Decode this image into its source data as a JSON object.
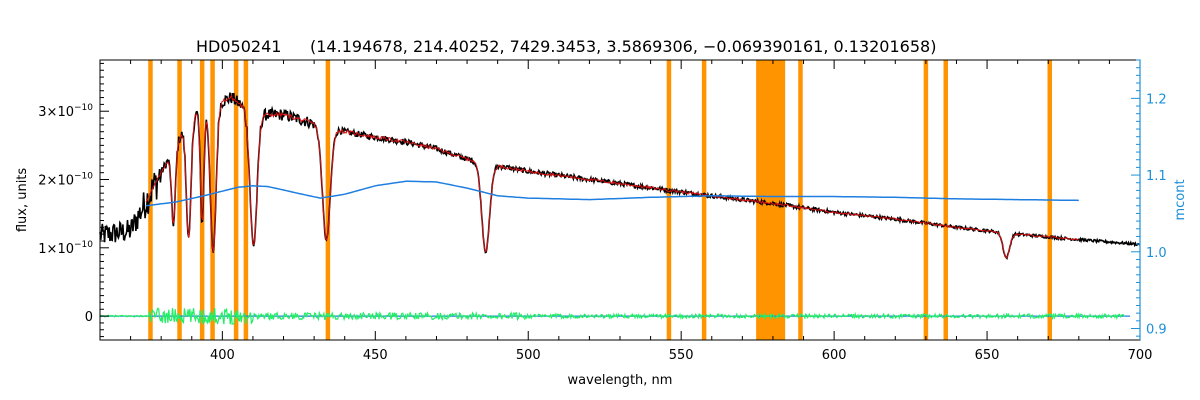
{
  "chart_data": {
    "type": "line",
    "title_parts": [
      "HD050241",
      "(14.194678, 214.40252, 7429.3453, 3.5869306, −0.069390161, 0.13201658)"
    ],
    "xlabel": "wavelength, nm",
    "ylabel_left": "flux, units",
    "ylabel_right": "mcont",
    "xlim": [
      360,
      700
    ],
    "ylim_left": [
      -3.5e-11,
      3.75e-10
    ],
    "ylim_right": [
      0.885,
      1.25
    ],
    "x_ticks": [
      400,
      450,
      500,
      550,
      600,
      650,
      700
    ],
    "x_tick_labels": [
      "400",
      "450",
      "500",
      "550",
      "600",
      "650",
      "700"
    ],
    "y_left_ticks": [
      0,
      1e-10,
      2e-10,
      3e-10
    ],
    "y_left_tick_labels": [
      {
        "base": "0",
        "exp": ""
      },
      {
        "base": "1×10",
        "exp": "−10"
      },
      {
        "base": "2×10",
        "exp": "−10"
      },
      {
        "base": "3×10",
        "exp": "−10"
      }
    ],
    "y_right_ticks": [
      0.9,
      1.0,
      1.1,
      1.2
    ],
    "y_right_tick_labels": [
      "0.9",
      "1.0",
      "1.1",
      "1.2"
    ],
    "masked_lines_nm": [
      376.5,
      386,
      393.4,
      396.8,
      404.5,
      407.7,
      434.5,
      546,
      557.5,
      589,
      630,
      636.5,
      670.5
    ],
    "masked_bands_nm": [
      [
        574.5,
        584
      ]
    ],
    "continuum_blue": {
      "x": [
        375,
        385,
        395,
        405,
        410,
        415,
        425,
        432,
        440,
        450,
        460,
        470,
        480,
        490,
        500,
        520,
        540,
        560,
        580,
        600,
        620,
        640,
        660,
        680
      ],
      "y": [
        1.06,
        1.065,
        1.074,
        1.084,
        1.086,
        1.085,
        1.076,
        1.07,
        1.075,
        1.086,
        1.092,
        1.091,
        1.083,
        1.073,
        1.07,
        1.068,
        1.071,
        1.073,
        1.072,
        1.072,
        1.071,
        1.069,
        1.068,
        1.067
      ]
    },
    "observed_anchor": {
      "x": [
        360,
        370,
        380,
        390,
        400,
        403,
        410,
        420,
        430,
        440,
        450,
        460,
        470,
        480,
        490,
        500,
        520,
        540,
        560,
        580,
        600,
        620,
        640,
        660,
        680,
        700
      ],
      "y": [
        1.18e-10,
        1.25e-10,
        2.1e-10,
        2.95e-10,
        3.15e-10,
        3.2e-10,
        2.95e-10,
        2.95e-10,
        2.82e-10,
        2.7e-10,
        2.62e-10,
        2.55e-10,
        2.45e-10,
        2.3e-10,
        2.2e-10,
        2.12e-10,
        2e-10,
        1.88e-10,
        1.76e-10,
        1.65e-10,
        1.52e-10,
        1.42e-10,
        1.3e-10,
        1.2e-10,
        1.12e-10,
        1.05e-10
      ]
    },
    "absorption_lines": [
      {
        "nm": 384,
        "depth": 0.45,
        "width": 0.9
      },
      {
        "nm": 389,
        "depth": 0.6,
        "width": 1.1
      },
      {
        "nm": 393.4,
        "depth": 0.55,
        "width": 0.8
      },
      {
        "nm": 397,
        "depth": 0.7,
        "width": 1.3
      },
      {
        "nm": 410.2,
        "depth": 0.65,
        "width": 1.6
      },
      {
        "nm": 434,
        "depth": 0.6,
        "width": 1.8
      },
      {
        "nm": 486.1,
        "depth": 0.58,
        "width": 1.8
      },
      {
        "nm": 656.3,
        "depth": 0.3,
        "width": 1.5
      }
    ],
    "model_range_nm": [
      375,
      680
    ],
    "residual_range_nm": [
      360,
      695
    ],
    "colors": {
      "observed": "#000000",
      "model": "#dd1111",
      "continuum": "#1e7fe0",
      "residual": "#22ee66",
      "mask": "#ff9400",
      "right_axis": "#1e90d8"
    }
  }
}
